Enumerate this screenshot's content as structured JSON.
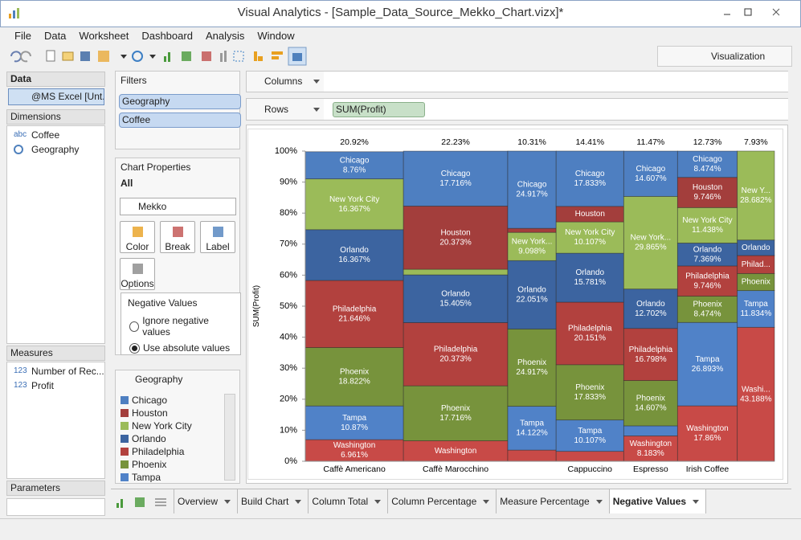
{
  "window": {
    "title": "Visual Analytics - [Sample_Data_Source_Mekko_Chart.vizx]*"
  },
  "menu": [
    "File",
    "Data",
    "Worksheet",
    "Dashboard",
    "Analysis",
    "Window"
  ],
  "toolbar": {
    "visualization": "Visualization"
  },
  "data_panel": {
    "title": "Data",
    "source": "@MS Excel [Unt...",
    "dimensions_title": "Dimensions",
    "dimensions": [
      {
        "icon": "abc",
        "label": "Coffee"
      },
      {
        "label": "Geography"
      }
    ],
    "measures_title": "Measures",
    "measures": [
      {
        "icon": "123",
        "label": "Number of Rec..."
      },
      {
        "icon": "123",
        "label": "Profit"
      }
    ],
    "parameters_title": "Parameters"
  },
  "filters": {
    "title": "Filters",
    "items": [
      "Geography",
      "Coffee"
    ]
  },
  "chart_properties": {
    "title": "Chart Properties",
    "scope": "All",
    "chart_type": "Mekko",
    "buttons": [
      "Color",
      "Break",
      "Label",
      "Options"
    ],
    "negative_values": {
      "title": "Negative Values",
      "options": [
        "Ignore negative values",
        "Use absolute values"
      ],
      "selected": 1
    }
  },
  "legend": {
    "title": "Geography"
  },
  "shelves": {
    "columns": "Columns",
    "rows": "Rows",
    "rows_pill": "SUM(Profit)"
  },
  "tabs": {
    "items": [
      "Overview",
      "Build Chart",
      "Column Total",
      "Column Percentage",
      "Measure Percentage",
      "Negative Values"
    ],
    "active": 5
  },
  "chart_data": {
    "type": "mekko",
    "categories": [
      "Caffè Americano",
      "Caffè Marocchino",
      null,
      "Cappuccino",
      "Espresso",
      "Irish Coffee",
      null
    ],
    "widths": [
      20.92,
      22.23,
      10.31,
      14.41,
      11.47,
      12.73,
      7.93
    ],
    "width_labels": [
      "20.92%",
      "22.23%",
      "10.31%",
      "14.41%",
      "11.47%",
      "12.73%",
      "7.93%"
    ],
    "y_label": "SUM(Profit)",
    "ylim": [
      0,
      100
    ],
    "yticks": [
      {
        "value": 0,
        "label": "0%"
      },
      {
        "value": 10,
        "label": "10%"
      },
      {
        "value": 20,
        "label": "20%"
      },
      {
        "value": 30,
        "label": "30%"
      },
      {
        "value": 40,
        "label": "40%"
      },
      {
        "value": 50,
        "label": "50%"
      },
      {
        "value": 60,
        "label": "60%"
      },
      {
        "value": 70,
        "label": "70%"
      },
      {
        "value": 80,
        "label": "80%"
      },
      {
        "value": 90,
        "label": "90%"
      },
      {
        "value": 100,
        "label": "100%"
      }
    ],
    "series": [
      {
        "name": "Chicago",
        "color": "#4e7fc1",
        "values": [
          8.76,
          17.716,
          24.917,
          17.833,
          14.607,
          8.474,
          null
        ],
        "value_labels": [
          "8.76%",
          "17.716%",
          "24.917%",
          "17.833%",
          "14.607%",
          "8.474%",
          null
        ],
        "labels": [
          "Chicago",
          "Chicago",
          "Chicago",
          "Chicago",
          "Chicago",
          "Chicago",
          null
        ]
      },
      {
        "name": "Houston",
        "color": "#a33e3c",
        "values": [
          null,
          20.373,
          1.3,
          5.0,
          null,
          9.746,
          null
        ],
        "value_labels": [
          null,
          "20.373%",
          null,
          null,
          null,
          "9.746%",
          null
        ],
        "labels": [
          null,
          "Houston",
          null,
          "Houston",
          null,
          "Houston",
          null
        ]
      },
      {
        "name": "New York City",
        "color": "#9bbb59",
        "values": [
          16.367,
          1.8,
          9.098,
          10.107,
          29.865,
          11.438,
          28.682
        ],
        "value_labels": [
          "16.367%",
          null,
          "9.098%",
          "10.107%",
          "29.865%",
          "11.438%",
          "28.682%"
        ],
        "labels": [
          "New York City",
          null,
          "New York...",
          "New York City",
          "New York...",
          "New York City",
          "New Y..."
        ]
      },
      {
        "name": "Orlando",
        "color": "#3c64a0",
        "values": [
          16.367,
          15.405,
          22.051,
          15.781,
          12.702,
          7.369,
          5.0
        ],
        "value_labels": [
          "16.367%",
          "15.405%",
          "22.051%",
          "15.781%",
          "12.702%",
          "7.369%",
          null
        ],
        "labels": [
          "Orlando",
          "Orlando",
          "Orlando",
          "Orlando",
          "Orlando",
          "Orlando",
          "Orlando"
        ]
      },
      {
        "name": "Philadelphia",
        "color": "#b2413e",
        "values": [
          21.646,
          20.373,
          null,
          20.151,
          16.798,
          9.746,
          5.8
        ],
        "value_labels": [
          "21.646%",
          "20.373%",
          null,
          "20.151%",
          "16.798%",
          "9.746%",
          null
        ],
        "labels": [
          "Philadelphia",
          "Philadelphia",
          null,
          "Philadelphia",
          "Philadelphia",
          "Philadelphia",
          "Philad..."
        ]
      },
      {
        "name": "Phoenix",
        "color": "#77933c",
        "values": [
          18.822,
          17.716,
          24.917,
          17.833,
          14.607,
          8.474,
          5.5
        ],
        "value_labels": [
          "18.822%",
          "17.716%",
          "24.917%",
          "17.833%",
          "14.607%",
          "8.474%",
          null
        ],
        "labels": [
          "Phoenix",
          "Phoenix",
          "Phoenix",
          "Phoenix",
          "Phoenix",
          "Phoenix",
          "Phoenix"
        ]
      },
      {
        "name": "Tampa",
        "color": "#5082c8",
        "values": [
          10.87,
          null,
          14.122,
          10.107,
          3.238,
          26.893,
          11.834
        ],
        "value_labels": [
          "10.87%",
          null,
          "14.122%",
          "10.107%",
          null,
          "26.893%",
          "11.834%"
        ],
        "labels": [
          "Tampa",
          null,
          "Tampa",
          "Tampa",
          null,
          "Tampa",
          "Tampa"
        ]
      },
      {
        "name": "Washington",
        "color": "#c84a47",
        "values": [
          6.961,
          6.6,
          3.6,
          3.2,
          8.183,
          17.86,
          43.188
        ],
        "value_labels": [
          "6.961%",
          null,
          null,
          null,
          "8.183%",
          "17.86%",
          "43.188%"
        ],
        "labels": [
          "Washington",
          "Washington",
          null,
          null,
          "Washington",
          "Washington",
          "Washi..."
        ]
      }
    ]
  }
}
